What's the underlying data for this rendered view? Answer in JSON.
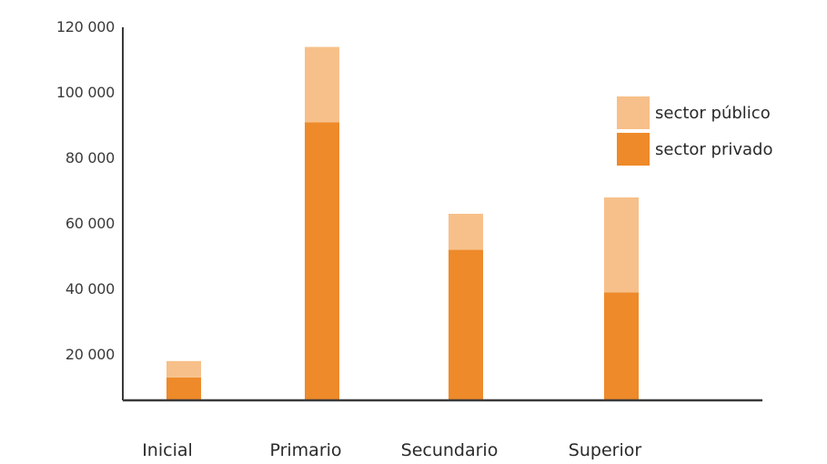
{
  "chart_data": {
    "type": "bar",
    "stacked": true,
    "categories": [
      "Inicial",
      "Primario",
      "Secundario",
      "Superior"
    ],
    "series": [
      {
        "name": "sector privado",
        "color": "#ee8a2a",
        "values": [
          15000,
          93000,
          54000,
          41000
        ]
      },
      {
        "name": "sector público",
        "color": "#f7c08a",
        "values": [
          5000,
          23000,
          11000,
          29000
        ]
      }
    ],
    "yticks": [
      {
        "value": 20000,
        "label": "20 000"
      },
      {
        "value": 40000,
        "label": "40 000"
      },
      {
        "value": 60000,
        "label": "60 000"
      },
      {
        "value": 80000,
        "label": "80 000"
      },
      {
        "value": 100000,
        "label": "100 000"
      },
      {
        "value": 120000,
        "label": "120 000"
      }
    ],
    "ylim": [
      8000,
      122000
    ],
    "legend_order": [
      1,
      0
    ],
    "legend_position": "top-right",
    "grid": false,
    "axis_color": "#3a3a3a",
    "title": "",
    "xlabel": "",
    "ylabel": ""
  }
}
